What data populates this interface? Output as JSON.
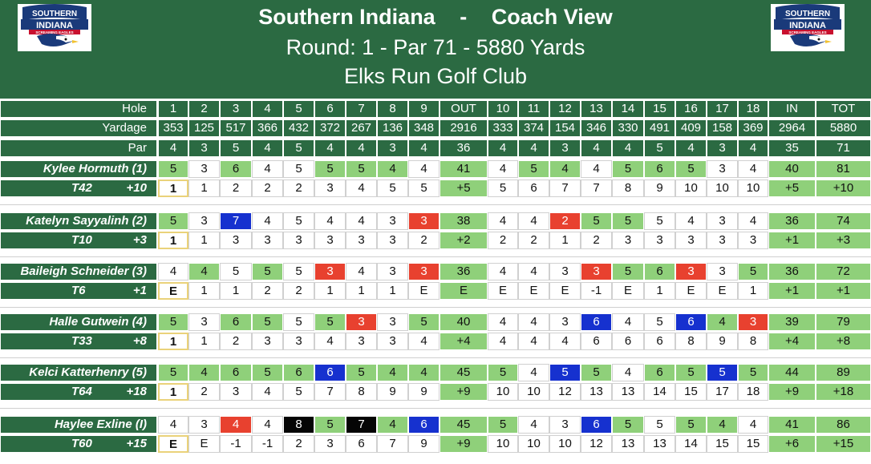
{
  "header": {
    "team": "Southern Indiana",
    "separator": "-",
    "view": "Coach View",
    "round_line": "Round: 1 - Par 71 - 5880 Yards",
    "course": "Elks Run Golf Club",
    "logo_text_top": "SOUTHERN",
    "logo_text_bottom": "INDIANA",
    "logo_tagline": "SCREAMING EAGLES",
    "logo_icon": "eagle-logo-icon",
    "colors": {
      "bar": "#2b6a42",
      "logo_blue": "#1a3a7a",
      "logo_red": "#c8102e"
    }
  },
  "scorecard": {
    "row_labels": {
      "hole": "Hole",
      "yardage": "Yardage",
      "par": "Par"
    },
    "holes": [
      "1",
      "2",
      "3",
      "4",
      "5",
      "6",
      "7",
      "8",
      "9",
      "OUT",
      "10",
      "11",
      "12",
      "13",
      "14",
      "15",
      "16",
      "17",
      "18",
      "IN",
      "TOT"
    ],
    "yardage": [
      "353",
      "125",
      "517",
      "366",
      "432",
      "372",
      "267",
      "136",
      "348",
      "2916",
      "333",
      "374",
      "154",
      "346",
      "330",
      "491",
      "409",
      "158",
      "369",
      "2964",
      "5880"
    ],
    "par": [
      "4",
      "3",
      "5",
      "4",
      "5",
      "4",
      "4",
      "3",
      "4",
      "36",
      "4",
      "4",
      "3",
      "4",
      "4",
      "5",
      "4",
      "3",
      "4",
      "35",
      "71"
    ],
    "legend_colors": {
      "par": "#8fd07a",
      "birdie": "#e8412f",
      "bogey": "#1631cf",
      "double_bogey": "#050505",
      "running_total_outline": "#ead27a"
    },
    "players": [
      {
        "name": "Kylee Hormuth (1)",
        "position": "T42",
        "to_par": "+10",
        "scores": [
          "5",
          "3",
          "6",
          "4",
          "5",
          "5",
          "5",
          "4",
          "4",
          "41",
          "4",
          "5",
          "4",
          "4",
          "5",
          "6",
          "5",
          "3",
          "4",
          "40",
          "81"
        ],
        "score_styles": [
          "par",
          "w",
          "par",
          "w",
          "w",
          "par",
          "par",
          "par",
          "w",
          "par",
          "w",
          "par",
          "par",
          "w",
          "par",
          "par",
          "par",
          "w",
          "w",
          "par",
          "par"
        ],
        "running": [
          "1",
          "1",
          "2",
          "2",
          "2",
          "3",
          "4",
          "5",
          "5",
          "+5",
          "5",
          "6",
          "7",
          "7",
          "8",
          "9",
          "10",
          "10",
          "10",
          "+5",
          "+10"
        ],
        "running_styles": [
          "run",
          "w",
          "w",
          "w",
          "w",
          "w",
          "w",
          "w",
          "w",
          "par",
          "w",
          "w",
          "w",
          "w",
          "w",
          "w",
          "w",
          "w",
          "w",
          "par",
          "par"
        ]
      },
      {
        "name": "Katelyn Sayyalinh (2)",
        "position": "T10",
        "to_par": "+3",
        "scores": [
          "5",
          "3",
          "7",
          "4",
          "5",
          "4",
          "4",
          "3",
          "3",
          "38",
          "4",
          "4",
          "2",
          "5",
          "5",
          "5",
          "4",
          "3",
          "4",
          "36",
          "74"
        ],
        "score_styles": [
          "par",
          "w",
          "bogey",
          "w",
          "w",
          "w",
          "w",
          "w",
          "bird",
          "par",
          "w",
          "w",
          "bird",
          "par",
          "par",
          "w",
          "w",
          "w",
          "w",
          "par",
          "par"
        ],
        "running": [
          "1",
          "1",
          "3",
          "3",
          "3",
          "3",
          "3",
          "3",
          "2",
          "+2",
          "2",
          "2",
          "1",
          "2",
          "3",
          "3",
          "3",
          "3",
          "3",
          "+1",
          "+3"
        ],
        "running_styles": [
          "run",
          "w",
          "w",
          "w",
          "w",
          "w",
          "w",
          "w",
          "w",
          "par",
          "w",
          "w",
          "w",
          "w",
          "w",
          "w",
          "w",
          "w",
          "w",
          "par",
          "par"
        ]
      },
      {
        "name": "Baileigh Schneider (3)",
        "position": "T6",
        "to_par": "+1",
        "scores": [
          "4",
          "4",
          "5",
          "5",
          "5",
          "3",
          "4",
          "3",
          "3",
          "36",
          "4",
          "4",
          "3",
          "3",
          "5",
          "6",
          "3",
          "3",
          "5",
          "36",
          "72"
        ],
        "score_styles": [
          "w",
          "par",
          "w",
          "par",
          "w",
          "bird",
          "w",
          "w",
          "bird",
          "par",
          "w",
          "w",
          "w",
          "bird",
          "par",
          "par",
          "bird",
          "w",
          "par",
          "par",
          "par"
        ],
        "running": [
          "E",
          "1",
          "1",
          "2",
          "2",
          "1",
          "1",
          "1",
          "E",
          "E",
          "E",
          "E",
          "E",
          "-1",
          "E",
          "1",
          "E",
          "E",
          "1",
          "+1",
          "+1"
        ],
        "running_styles": [
          "run",
          "w",
          "w",
          "w",
          "w",
          "w",
          "w",
          "w",
          "w",
          "par",
          "w",
          "w",
          "w",
          "w",
          "w",
          "w",
          "w",
          "w",
          "w",
          "par",
          "par"
        ]
      },
      {
        "name": "Halle Gutwein (4)",
        "position": "T33",
        "to_par": "+8",
        "scores": [
          "5",
          "3",
          "6",
          "5",
          "5",
          "5",
          "3",
          "3",
          "5",
          "40",
          "4",
          "4",
          "3",
          "6",
          "4",
          "5",
          "6",
          "4",
          "3",
          "39",
          "79"
        ],
        "score_styles": [
          "par",
          "w",
          "par",
          "par",
          "w",
          "par",
          "bird",
          "w",
          "par",
          "par",
          "w",
          "w",
          "w",
          "bogey",
          "w",
          "w",
          "bogey",
          "par",
          "bird",
          "par",
          "par"
        ],
        "running": [
          "1",
          "1",
          "2",
          "3",
          "3",
          "4",
          "3",
          "3",
          "4",
          "+4",
          "4",
          "4",
          "4",
          "6",
          "6",
          "6",
          "8",
          "9",
          "8",
          "+4",
          "+8"
        ],
        "running_styles": [
          "run",
          "w",
          "w",
          "w",
          "w",
          "w",
          "w",
          "w",
          "w",
          "par",
          "w",
          "w",
          "w",
          "w",
          "w",
          "w",
          "w",
          "w",
          "w",
          "par",
          "par"
        ]
      },
      {
        "name": "Kelci Katterhenry (5)",
        "position": "T64",
        "to_par": "+18",
        "scores": [
          "5",
          "4",
          "6",
          "5",
          "6",
          "6",
          "5",
          "4",
          "4",
          "45",
          "5",
          "4",
          "5",
          "5",
          "4",
          "6",
          "5",
          "5",
          "5",
          "44",
          "89"
        ],
        "score_styles": [
          "par",
          "par",
          "par",
          "par",
          "par",
          "bogey",
          "par",
          "par",
          "par",
          "par",
          "par",
          "w",
          "bogey",
          "par",
          "w",
          "par",
          "par",
          "bogey",
          "par",
          "par",
          "par"
        ],
        "running": [
          "1",
          "2",
          "3",
          "4",
          "5",
          "7",
          "8",
          "9",
          "9",
          "+9",
          "10",
          "10",
          "12",
          "13",
          "13",
          "14",
          "15",
          "17",
          "18",
          "+9",
          "+18"
        ],
        "running_styles": [
          "run",
          "w",
          "w",
          "w",
          "w",
          "w",
          "w",
          "w",
          "w",
          "par",
          "w",
          "w",
          "w",
          "w",
          "w",
          "w",
          "w",
          "w",
          "w",
          "par",
          "par"
        ]
      },
      {
        "name": "Haylee Exline (I)",
        "position": "T60",
        "to_par": "+15",
        "scores": [
          "4",
          "3",
          "4",
          "4",
          "8",
          "5",
          "7",
          "4",
          "6",
          "45",
          "5",
          "4",
          "3",
          "6",
          "5",
          "5",
          "5",
          "4",
          "4",
          "41",
          "86"
        ],
        "score_styles": [
          "w",
          "w",
          "bird",
          "w",
          "dbl",
          "par",
          "dbl",
          "par",
          "bogey",
          "par",
          "par",
          "w",
          "w",
          "bogey",
          "par",
          "w",
          "par",
          "par",
          "w",
          "par",
          "par"
        ],
        "running": [
          "E",
          "E",
          "-1",
          "-1",
          "2",
          "3",
          "6",
          "7",
          "9",
          "+9",
          "10",
          "10",
          "10",
          "12",
          "13",
          "13",
          "14",
          "15",
          "15",
          "+6",
          "+15"
        ],
        "running_styles": [
          "run",
          "w",
          "w",
          "w",
          "w",
          "w",
          "w",
          "w",
          "w",
          "par",
          "w",
          "w",
          "w",
          "w",
          "w",
          "w",
          "w",
          "w",
          "w",
          "par",
          "par"
        ]
      }
    ]
  }
}
